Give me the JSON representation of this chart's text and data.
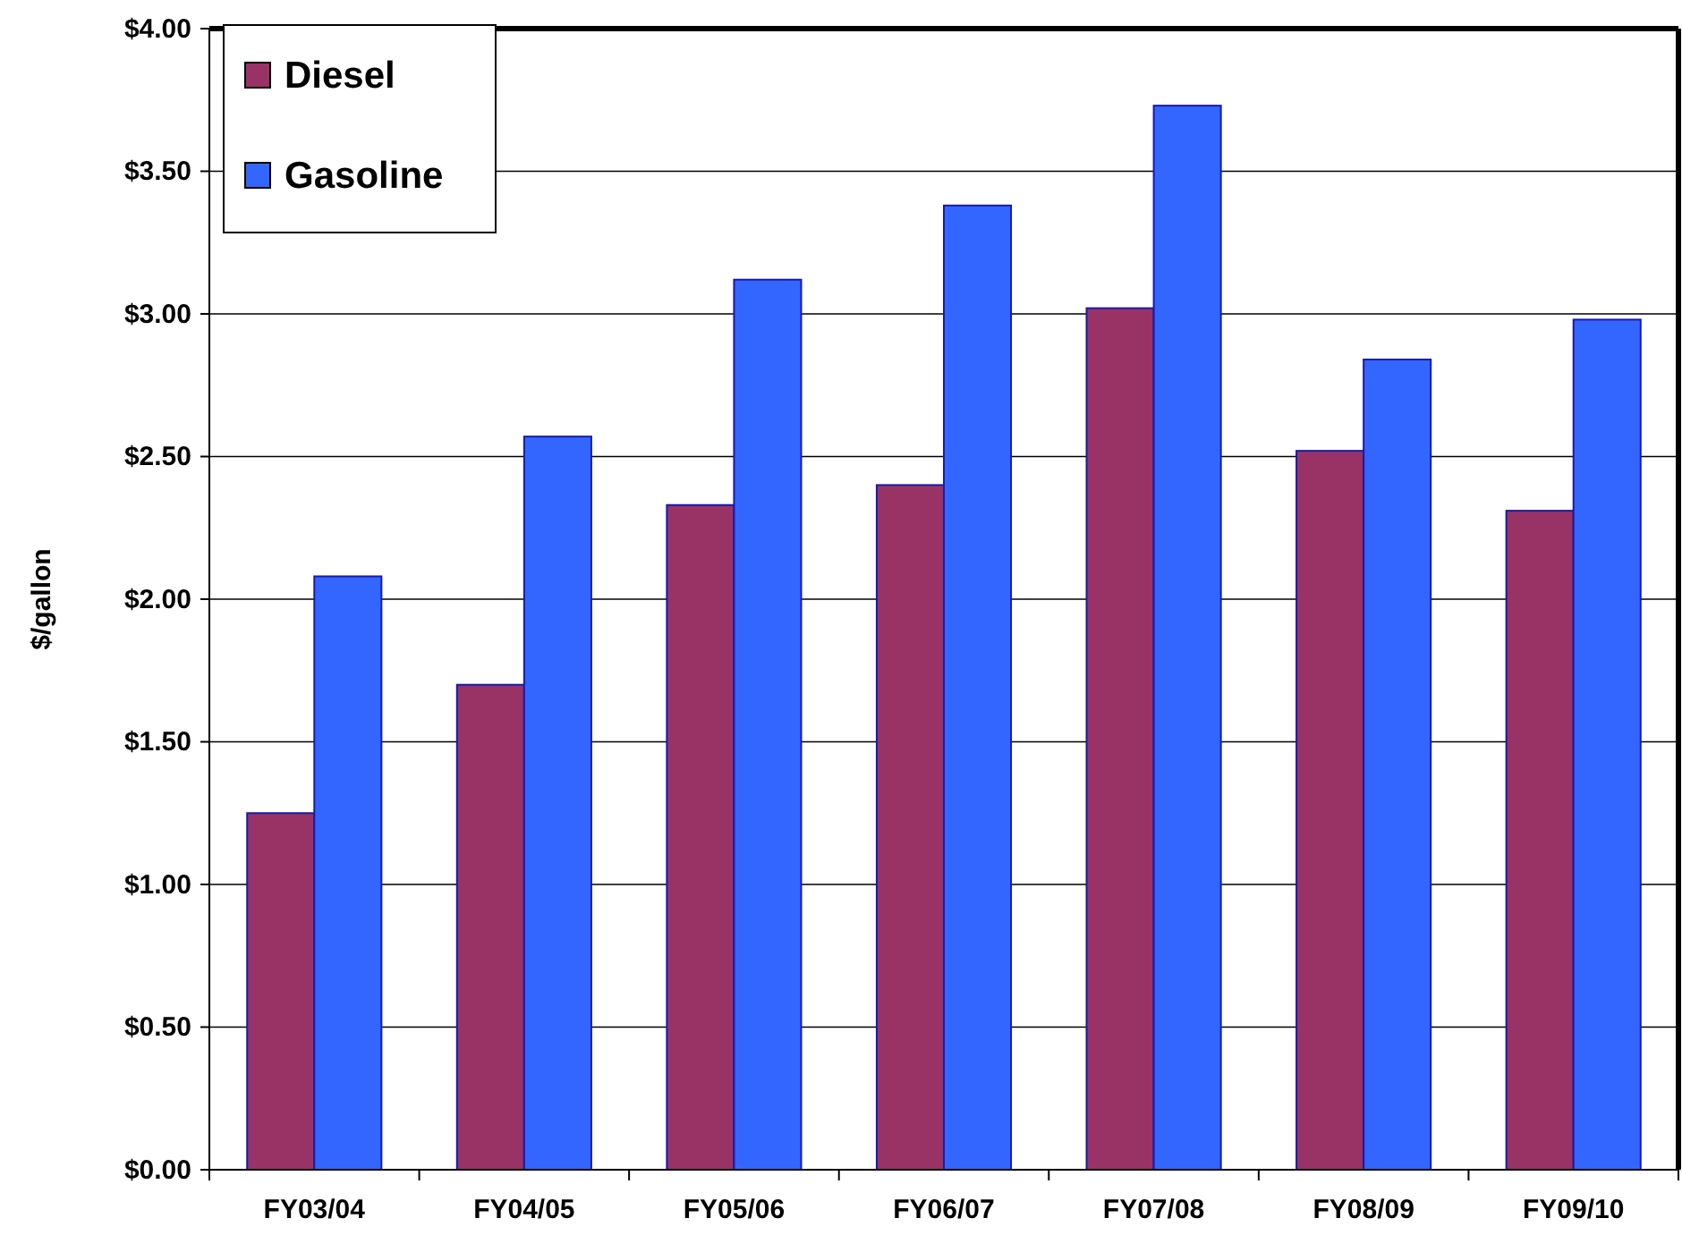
{
  "chart_data": {
    "type": "bar",
    "ylabel": "$/gallon",
    "categories": [
      "FY03/04",
      "FY04/05",
      "FY05/06",
      "FY06/07",
      "FY07/08",
      "FY08/09",
      "FY09/10"
    ],
    "series": [
      {
        "name": "Diesel",
        "color": "#993366",
        "values": [
          1.25,
          1.7,
          2.33,
          2.4,
          3.02,
          2.52,
          2.31
        ]
      },
      {
        "name": "Gasoline",
        "color": "#3366ff",
        "values": [
          2.08,
          2.57,
          3.12,
          3.38,
          3.73,
          2.84,
          2.98
        ]
      }
    ],
    "ylim": [
      0,
      4
    ],
    "yticks": [
      {
        "value": 0,
        "label": "$0.00"
      },
      {
        "value": 0.5,
        "label": "$0.50"
      },
      {
        "value": 1,
        "label": "$1.00"
      },
      {
        "value": 1.5,
        "label": "$1.50"
      },
      {
        "value": 2,
        "label": "$2.00"
      },
      {
        "value": 2.5,
        "label": "$2.50"
      },
      {
        "value": 3,
        "label": "$3.00"
      },
      {
        "value": 3.5,
        "label": "$3.50"
      },
      {
        "value": 4,
        "label": "$4.00"
      }
    ],
    "grid": "y",
    "legend": "top left"
  }
}
